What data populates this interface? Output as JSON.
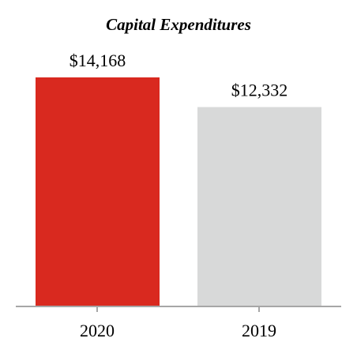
{
  "chart_data": {
    "type": "bar",
    "title": "Capital Expenditures",
    "xlabel": "",
    "ylabel": "",
    "categories": [
      "2020",
      "2019"
    ],
    "values": [
      14168,
      12332
    ],
    "value_labels": [
      "$14,168",
      "$12,332"
    ],
    "bar_colors": [
      "#d9291f",
      "#d8d9d9"
    ],
    "axis_color": "#a6a6a6",
    "ylim": [
      0,
      15000
    ],
    "grid": false,
    "legend": "none"
  }
}
